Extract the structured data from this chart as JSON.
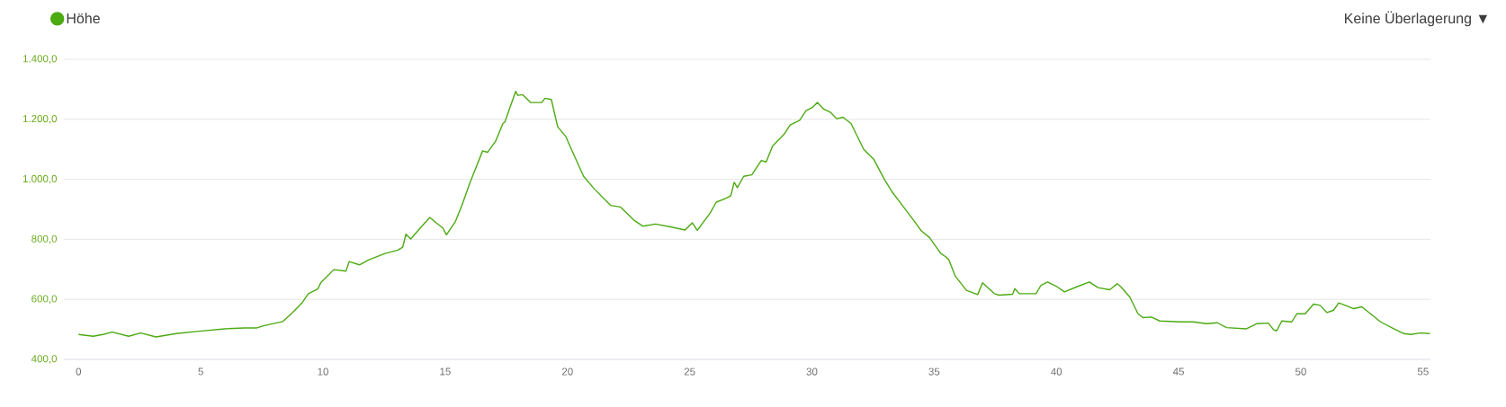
{
  "chart_data": {
    "type": "line",
    "x": [
      0,
      0.6,
      1.0,
      1.38,
      2.05,
      2.54,
      3.17,
      4.0,
      4.94,
      6.0,
      6.8,
      7.3,
      7.56,
      8.35,
      8.74,
      9.13,
      9.4,
      9.79,
      9.92,
      10.05,
      10.44,
      10.94,
      11.07,
      11.49,
      11.88,
      12.54,
      13.06,
      13.26,
      13.39,
      13.59,
      13.98,
      14.37,
      14.63,
      14.9,
      15.05,
      15.42,
      15.68,
      16.01,
      16.53,
      16.73,
      17.06,
      17.36,
      17.44,
      17.88,
      17.97,
      18.17,
      18.49,
      18.95,
      19.08,
      19.34,
      19.6,
      19.93,
      20.13,
      20.66,
      21.11,
      21.77,
      22.16,
      22.75,
      23.08,
      23.6,
      24.26,
      24.81,
      25.11,
      25.31,
      25.83,
      26.09,
      26.49,
      26.68,
      26.82,
      26.95,
      27.21,
      27.54,
      27.93,
      28.13,
      28.39,
      28.85,
      29.11,
      29.5,
      29.76,
      30.03,
      30.22,
      30.48,
      30.75,
      31.01,
      31.27,
      31.6,
      31.86,
      32.12,
      32.52,
      32.97,
      33.3,
      33.7,
      34.09,
      34.48,
      34.81,
      35.27,
      35.47,
      35.6,
      35.86,
      36.32,
      36.78,
      36.98,
      37.46,
      37.66,
      38.21,
      38.3,
      38.48,
      39.17,
      39.37,
      39.64,
      39.99,
      40.33,
      40.81,
      41.35,
      41.7,
      42.18,
      42.49,
      42.65,
      43.0,
      43.34,
      43.54,
      43.89,
      44.23,
      45.05,
      45.6,
      46.14,
      46.58,
      46.96,
      47.78,
      48.19,
      48.67,
      48.88,
      49.01,
      49.22,
      49.63,
      49.84,
      50.18,
      50.52,
      50.79,
      51.07,
      51.34,
      51.55,
      51.82,
      52.16,
      52.5,
      52.85,
      53.26,
      53.8,
      54.21,
      54.49,
      54.89,
      55.28
    ],
    "series": [
      {
        "name": "Höhe",
        "color": "#4caa12",
        "values": [
          483,
          477,
          483,
          491,
          477,
          488,
          475,
          486,
          494,
          502,
          505,
          505,
          512,
          526,
          555,
          587,
          619,
          635,
          657,
          667,
          699,
          694,
          726,
          715,
          732,
          753,
          764,
          774,
          817,
          801,
          838,
          873,
          855,
          838,
          815,
          860,
          913,
          988,
          1095,
          1090,
          1127,
          1186,
          1191,
          1293,
          1280,
          1282,
          1256,
          1256,
          1270,
          1266,
          1175,
          1143,
          1106,
          1010,
          967,
          913,
          908,
          862,
          844,
          851,
          841,
          831,
          855,
          830,
          887,
          924,
          937,
          945,
          990,
          972,
          1010,
          1015,
          1063,
          1058,
          1111,
          1149,
          1181,
          1197,
          1229,
          1240,
          1256,
          1234,
          1224,
          1202,
          1207,
          1186,
          1143,
          1100,
          1068,
          999,
          956,
          913,
          871,
          828,
          806,
          753,
          742,
          732,
          678,
          630,
          616,
          655,
          619,
          614,
          617,
          636,
          619,
          619,
          647,
          658,
          644,
          625,
          641,
          658,
          639,
          632,
          652,
          641,
          608,
          552,
          539,
          541,
          528,
          525,
          525,
          519,
          522,
          506,
          502,
          519,
          521,
          499,
          495,
          528,
          525,
          552,
          552,
          584,
          580,
          556,
          564,
          588,
          580,
          569,
          575,
          552,
          525,
          502,
          486,
          483,
          488,
          486
        ]
      }
    ],
    "xlim": [
      -0.6,
      55.3
    ],
    "ylim": [
      400,
      1400
    ],
    "xticks": [
      0,
      5,
      10,
      15,
      20,
      25,
      30,
      35,
      40,
      45,
      50,
      55
    ],
    "yticks": [
      {
        "value": 400,
        "label": "400,0"
      },
      {
        "value": 600,
        "label": "600,0"
      },
      {
        "value": 800,
        "label": "800,0"
      },
      {
        "value": 1000,
        "label": "1.000,0"
      },
      {
        "value": 1200,
        "label": "1.200,0"
      },
      {
        "value": 1400,
        "label": "1.400,0"
      }
    ],
    "grid": "y",
    "legend": "top left",
    "marker": "none",
    "line_style": "solid",
    "annotations": [
      "Keine Überlagerung ▼"
    ]
  }
}
